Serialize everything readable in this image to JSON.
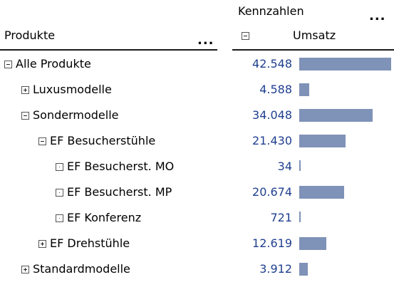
{
  "header": {
    "measure_group": "Kennzahlen",
    "dimension_title": "Produkte",
    "measure": "Umsatz",
    "more": "..."
  },
  "rows": [
    {
      "label": "Alle Produkte",
      "level": 0,
      "state": "expanded",
      "value": "42.548",
      "amount": 42548
    },
    {
      "label": "Luxusmodelle",
      "level": 1,
      "state": "collapsed",
      "value": "4.588",
      "amount": 4588
    },
    {
      "label": "Sondermodelle",
      "level": 1,
      "state": "expanded",
      "value": "34.048",
      "amount": 34048
    },
    {
      "label": "EF Besucherstühle",
      "level": 2,
      "state": "expanded",
      "value": "21.430",
      "amount": 21430
    },
    {
      "label": "EF Besucherst. MO",
      "level": 3,
      "state": "leaf",
      "value": "34",
      "amount": 34
    },
    {
      "label": "EF Besucherst. MP",
      "level": 3,
      "state": "leaf",
      "value": "20.674",
      "amount": 20674
    },
    {
      "label": "EF Konferenz",
      "level": 3,
      "state": "leaf",
      "value": "721",
      "amount": 721
    },
    {
      "label": "EF Drehstühle",
      "level": 2,
      "state": "collapsed",
      "value": "12.619",
      "amount": 12619
    },
    {
      "label": "Standardmodelle",
      "level": 1,
      "state": "collapsed",
      "value": "3.912",
      "amount": 3912
    }
  ],
  "bar_color": "#7f92b8",
  "value_color": "#1f3f8f"
}
